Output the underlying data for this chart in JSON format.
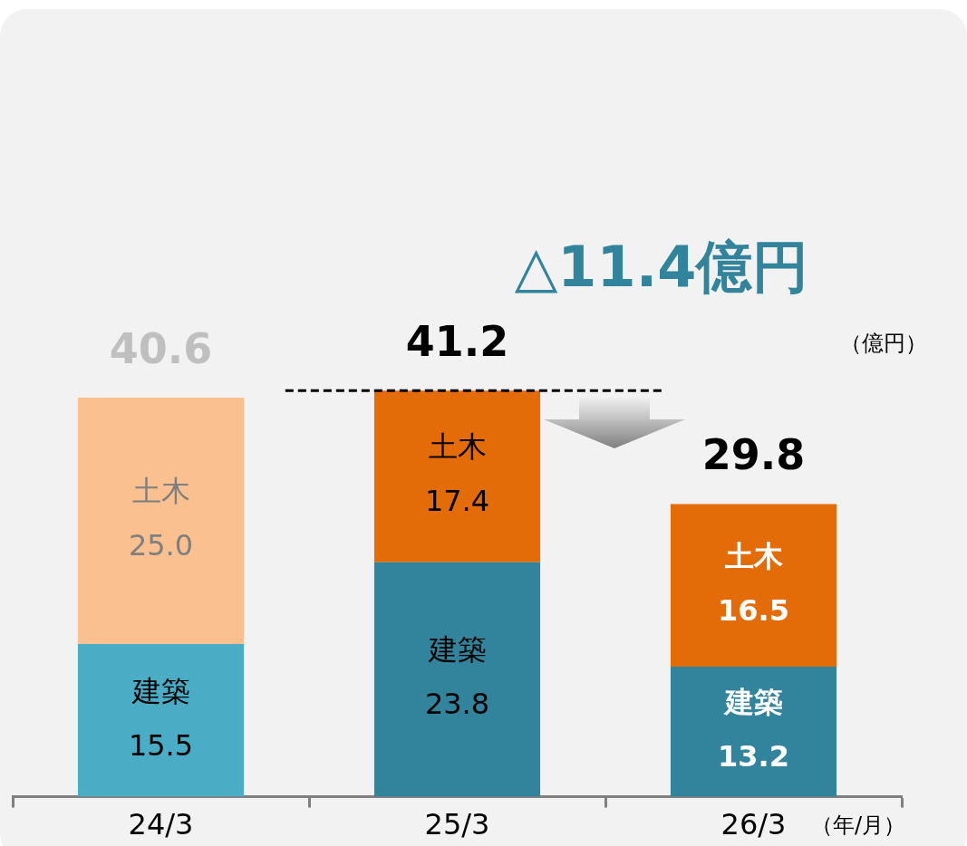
{
  "chart_data": {
    "type": "bar",
    "stacked": true,
    "categories": [
      "24/3",
      "25/3",
      "26/3"
    ],
    "series": [
      {
        "name": "建築",
        "colors": [
          "#4bacc6",
          "#31849b",
          "#31849b"
        ],
        "values": [
          15.5,
          23.8,
          13.2
        ],
        "value_labels": [
          "15.5",
          "23.8",
          "13.2"
        ]
      },
      {
        "name": "土木",
        "colors": [
          "#fac090",
          "#e36c09",
          "#e36c09"
        ],
        "values": [
          25.0,
          17.4,
          16.5
        ],
        "value_labels": [
          "25.0",
          "17.4",
          "16.5"
        ]
      }
    ],
    "totals": [
      "40.6",
      "41.2",
      "29.8"
    ],
    "tick_labels": "x",
    "grid": false,
    "legend": false,
    "ref_lines": [
      {
        "axis": "y",
        "value": 41.2,
        "line_style": "dashed",
        "color": "#000000"
      }
    ],
    "annotations": [
      "△11.4億円",
      "（億円）",
      "（年/月）"
    ]
  }
}
